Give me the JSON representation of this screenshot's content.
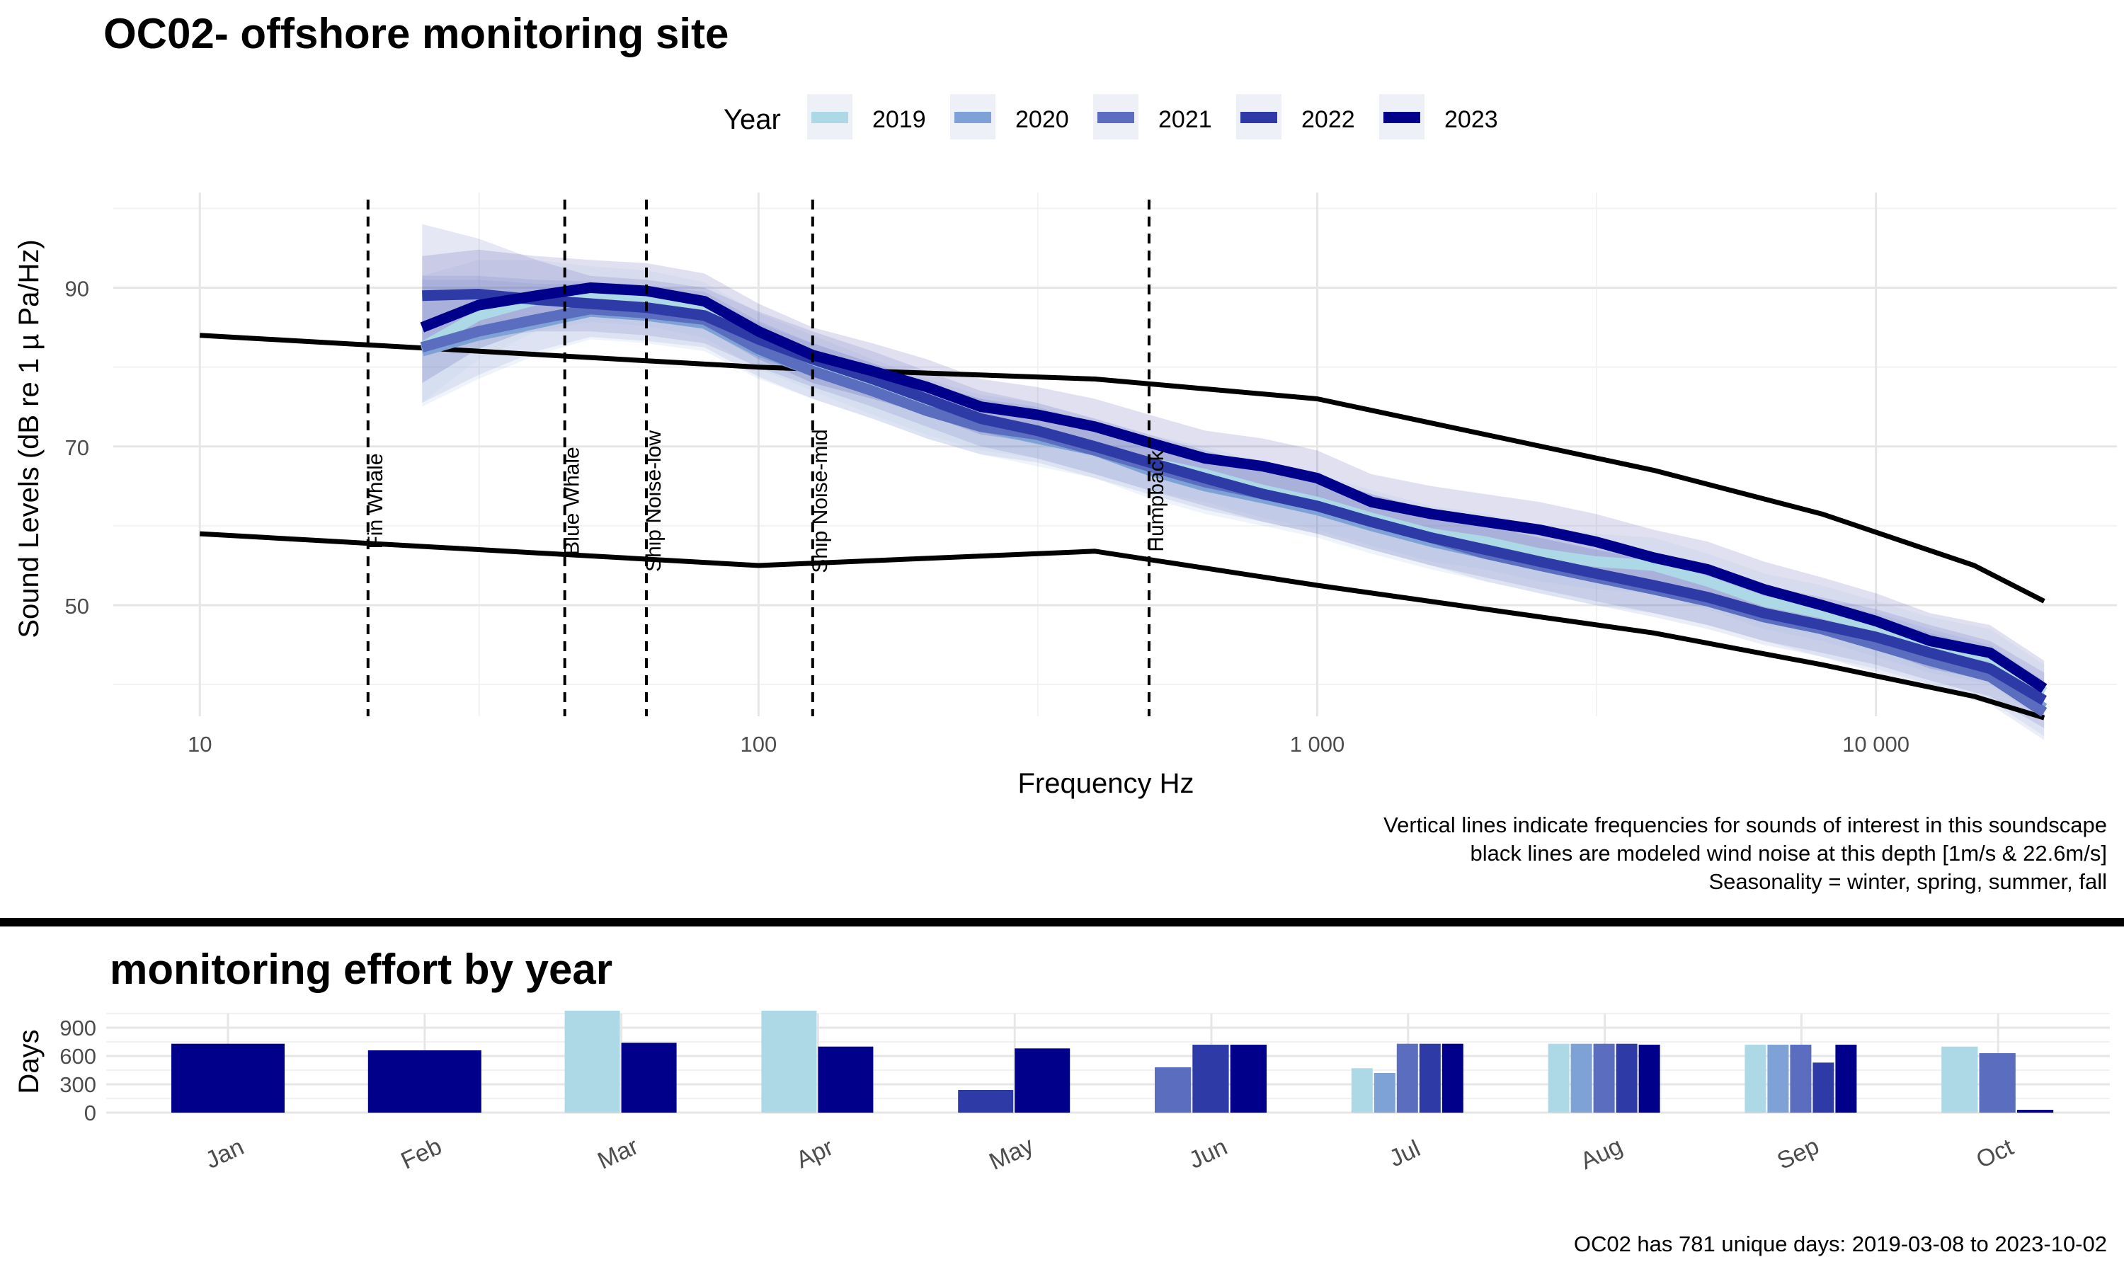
{
  "top_title": "OC02- offshore monitoring site",
  "bottom_title": "monitoring effort by year",
  "legend": {
    "title": "Year",
    "entries": [
      {
        "label": "2019",
        "color": "#add8e6"
      },
      {
        "label": "2020",
        "color": "#7ea1d6"
      },
      {
        "label": "2021",
        "color": "#5a6dbf"
      },
      {
        "label": "2022",
        "color": "#2e3aa6"
      },
      {
        "label": "2023",
        "color": "#00008b"
      }
    ]
  },
  "notes": [
    "Vertical lines indicate frequencies for sounds of interest in this soundscape",
    "black lines are modeled wind noise at this depth [1m/s & 22.6m/s]",
    "Seasonality = winter, spring, summer, fall"
  ],
  "footer": "OC02 has 781 unique days: 2019-03-08 to 2023-10-02",
  "chart_data": [
    {
      "type": "line",
      "title": "OC02- offshore monitoring site",
      "xlabel": "Frequency Hz",
      "ylabel": "Sound Levels (dB re 1 µ Pa/Hz)",
      "xscale": "log",
      "xlim": [
        7,
        27000
      ],
      "ylim": [
        36,
        102
      ],
      "xticks": [
        10,
        100,
        1000,
        10000
      ],
      "xtick_labels": [
        "10",
        "100",
        "1 000",
        "10 000"
      ],
      "yticks": [
        50,
        70,
        90
      ],
      "grid": true,
      "legend_position": "top",
      "x": [
        25,
        31.5,
        40,
        50,
        63,
        80,
        100,
        125,
        160,
        200,
        250,
        315,
        400,
        500,
        630,
        800,
        1000,
        1250,
        1600,
        2000,
        2500,
        3150,
        4000,
        5000,
        6300,
        8000,
        10000,
        12500,
        16000,
        20000
      ],
      "series": [
        {
          "name": "2019",
          "color": "#add8e6",
          "values": [
            82.5,
            86.5,
            88.5,
            89.2,
            88.7,
            87.2,
            83.3,
            80.5,
            77.5,
            75.0,
            73.0,
            72.0,
            70.0,
            68.0,
            66.5,
            64.5,
            63.0,
            61.0,
            59.0,
            58.0,
            56.5,
            55.5,
            55.0,
            53.0,
            50.5,
            49.0,
            47.0,
            45.0,
            43.5,
            39.0
          ]
        },
        {
          "name": "2020",
          "color": "#7ea1d6",
          "values": [
            82.0,
            84.0,
            85.5,
            87.0,
            86.5,
            85.5,
            82.0,
            79.5,
            77.0,
            74.5,
            72.5,
            71.0,
            69.5,
            67.0,
            65.0,
            63.5,
            62.0,
            60.0,
            58.0,
            56.5,
            55.0,
            53.5,
            52.5,
            51.0,
            49.0,
            47.0,
            45.5,
            43.5,
            41.5,
            37.0
          ]
        },
        {
          "name": "2021",
          "color": "#5a6dbf",
          "values": [
            82.5,
            84.5,
            86.0,
            87.3,
            86.8,
            86.0,
            82.3,
            79.5,
            77.0,
            74.5,
            72.5,
            71.5,
            69.5,
            67.5,
            65.5,
            64.0,
            62.5,
            60.5,
            58.5,
            56.5,
            55.0,
            53.5,
            52.0,
            50.5,
            48.5,
            47.0,
            45.0,
            43.0,
            41.0,
            36.5
          ]
        },
        {
          "name": "2022",
          "color": "#2e3aa6",
          "values": [
            89.0,
            89.2,
            88.5,
            88.0,
            87.5,
            86.5,
            83.5,
            81.0,
            78.5,
            76.0,
            73.5,
            72.0,
            70.0,
            68.0,
            66.0,
            64.0,
            62.5,
            60.5,
            58.5,
            57.0,
            55.5,
            54.0,
            52.5,
            51.0,
            49.0,
            47.5,
            46.0,
            44.0,
            42.0,
            38.0
          ]
        },
        {
          "name": "2023",
          "color": "#00008b",
          "values": [
            85.0,
            87.8,
            89.0,
            90.0,
            89.6,
            88.3,
            84.5,
            81.5,
            79.5,
            77.5,
            75.0,
            74.0,
            72.5,
            70.5,
            68.5,
            67.5,
            66.0,
            63.0,
            61.5,
            60.5,
            59.5,
            58.0,
            56.0,
            54.5,
            52.0,
            50.0,
            48.0,
            45.5,
            44.0,
            39.5
          ]
        }
      ],
      "wind_noise": {
        "color": "#000000",
        "lines": [
          {
            "label": "22.6m/s",
            "x": [
              10,
              100,
              400,
              1000,
              4000,
              8000,
              15000,
              20000
            ],
            "values": [
              84.0,
              80.0,
              78.5,
              76.0,
              67.0,
              61.5,
              55.0,
              50.5
            ]
          },
          {
            "label": "1m/s",
            "x": [
              10,
              100,
              400,
              1000,
              4000,
              8000,
              15000,
              20000
            ],
            "values": [
              59.0,
              55.0,
              56.8,
              52.5,
              46.5,
              42.5,
              38.5,
              35.8
            ]
          }
        ]
      },
      "markers": [
        {
          "label": "Fin Whale",
          "x": 20
        },
        {
          "label": "Blue Whale",
          "x": 45
        },
        {
          "label": "Ship Noise-low",
          "x": 63
        },
        {
          "label": "Ship Noise-mid",
          "x": 125
        },
        {
          "label": "Humpback",
          "x": 500
        }
      ]
    },
    {
      "type": "bar",
      "title": "monitoring effort by year",
      "ylabel": "Days",
      "ylim": [
        0,
        1050
      ],
      "yticks": [
        0,
        300,
        600,
        900
      ],
      "categories": [
        "Jan",
        "Feb",
        "Mar",
        "Apr",
        "May",
        "Jun",
        "Jul",
        "Aug",
        "Sep",
        "Oct"
      ],
      "series": [
        {
          "name": "2019",
          "color": "#add8e6",
          "values": [
            null,
            null,
            1080,
            1080,
            null,
            null,
            470,
            730,
            720,
            700
          ]
        },
        {
          "name": "2020",
          "color": "#7ea1d6",
          "values": [
            null,
            null,
            null,
            null,
            null,
            null,
            420,
            730,
            720,
            null
          ]
        },
        {
          "name": "2021",
          "color": "#5a6dbf",
          "values": [
            null,
            null,
            null,
            null,
            null,
            480,
            730,
            730,
            720,
            630
          ]
        },
        {
          "name": "2022",
          "color": "#2e3aa6",
          "values": [
            null,
            null,
            null,
            null,
            240,
            720,
            730,
            730,
            530,
            null
          ]
        },
        {
          "name": "2023",
          "color": "#00008b",
          "values": [
            730,
            660,
            740,
            700,
            680,
            720,
            730,
            720,
            720,
            30
          ]
        }
      ]
    }
  ]
}
